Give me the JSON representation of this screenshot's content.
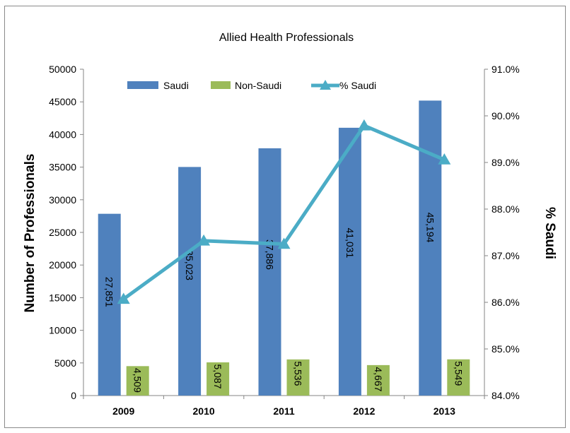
{
  "chart_data": {
    "type": "bar",
    "title": "Allied Health Professionals",
    "xlabel": "",
    "ylabel": "Number of Professionals",
    "y2label": "% Saudi",
    "categories": [
      "2009",
      "2010",
      "2011",
      "2012",
      "2013"
    ],
    "ylim": [
      0,
      50000
    ],
    "yticks": [
      0,
      5000,
      10000,
      15000,
      20000,
      25000,
      30000,
      35000,
      40000,
      45000,
      50000
    ],
    "y2lim": [
      84.0,
      91.0
    ],
    "y2ticks": [
      "84.0%",
      "85.0%",
      "86.0%",
      "87.0%",
      "88.0%",
      "89.0%",
      "90.0%",
      "91.0%"
    ],
    "grid": false,
    "legend_position": "top",
    "series": [
      {
        "name": "Saudi",
        "type": "bar",
        "axis": "left",
        "color": "#4f81bd",
        "values": [
          27851,
          35023,
          37886,
          41031,
          45194
        ],
        "labels": [
          "27,851",
          "35,023",
          "37,886",
          "41,031",
          "45,194"
        ]
      },
      {
        "name": "Non-Saudi",
        "type": "bar",
        "axis": "left",
        "color": "#9bbb59",
        "values": [
          4509,
          5087,
          5536,
          4667,
          5549
        ],
        "labels": [
          "4,509",
          "5,087",
          "5,536",
          "4,667",
          "5,549"
        ]
      },
      {
        "name": "% Saudi",
        "type": "line",
        "axis": "right",
        "color": "#4bacc6",
        "values": [
          86.07,
          87.32,
          87.25,
          89.79,
          89.06
        ]
      }
    ]
  }
}
